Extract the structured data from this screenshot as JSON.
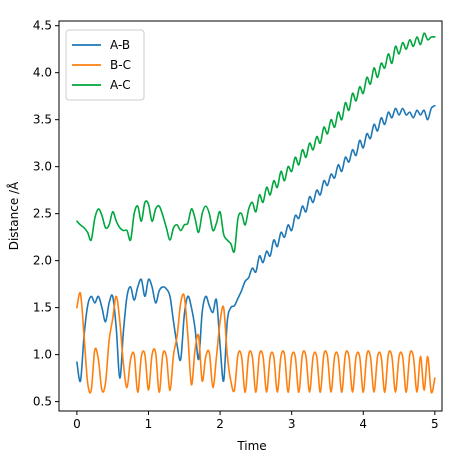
{
  "chart_data": {
    "type": "line",
    "xlabel": "Time",
    "ylabel": "Distance /Å",
    "xlim": [
      -0.25,
      5.1
    ],
    "ylim": [
      0.4,
      4.55
    ],
    "xticks": [
      0,
      1,
      2,
      3,
      4,
      5
    ],
    "xtick_labels": [
      "0",
      "1",
      "2",
      "3",
      "4",
      "5"
    ],
    "yticks": [
      0.5,
      1.0,
      1.5,
      2.0,
      2.5,
      3.0,
      3.5,
      4.0,
      4.5
    ],
    "ytick_labels": [
      "0.5",
      "1.0",
      "1.5",
      "2.0",
      "2.5",
      "3.0",
      "3.5",
      "4.0",
      "4.5"
    ],
    "grid": false,
    "legend_position": "top-left",
    "series": [
      {
        "name": "A-B",
        "color": "#1f77b4",
        "x": [
          0.0,
          0.05,
          0.1,
          0.15,
          0.2,
          0.25,
          0.3,
          0.35,
          0.4,
          0.45,
          0.5,
          0.55,
          0.6,
          0.65,
          0.7,
          0.75,
          0.8,
          0.85,
          0.9,
          0.95,
          1.0,
          1.05,
          1.1,
          1.15,
          1.2,
          1.25,
          1.3,
          1.35,
          1.4,
          1.45,
          1.5,
          1.55,
          1.6,
          1.65,
          1.7,
          1.75,
          1.8,
          1.85,
          1.9,
          1.95,
          2.0,
          2.05,
          2.1,
          2.15,
          2.2,
          2.25,
          2.3,
          2.35,
          2.4,
          2.45,
          2.5,
          2.55,
          2.6,
          2.65,
          2.7,
          2.75,
          2.8,
          2.85,
          2.9,
          2.95,
          3.0,
          3.05,
          3.1,
          3.15,
          3.2,
          3.25,
          3.3,
          3.35,
          3.4,
          3.45,
          3.5,
          3.55,
          3.6,
          3.65,
          3.7,
          3.75,
          3.8,
          3.85,
          3.9,
          3.95,
          4.0,
          4.05,
          4.1,
          4.15,
          4.2,
          4.25,
          4.3,
          4.35,
          4.4,
          4.45,
          4.5,
          4.55,
          4.6,
          4.65,
          4.7,
          4.75,
          4.8,
          4.85,
          4.9,
          4.95,
          5.0
        ],
        "y": [
          0.92,
          0.72,
          1.2,
          1.52,
          1.62,
          1.55,
          1.62,
          1.5,
          1.35,
          1.55,
          1.62,
          1.28,
          0.75,
          1.25,
          1.62,
          1.72,
          1.58,
          1.72,
          1.8,
          1.62,
          1.8,
          1.72,
          1.55,
          1.68,
          1.72,
          1.7,
          1.62,
          1.35,
          1.1,
          0.95,
          1.42,
          1.62,
          1.5,
          1.28,
          0.95,
          1.45,
          1.62,
          1.52,
          1.45,
          1.58,
          1.1,
          0.72,
          1.35,
          1.5,
          1.52,
          1.6,
          1.68,
          1.78,
          1.82,
          1.92,
          1.88,
          2.05,
          1.98,
          2.1,
          2.05,
          2.22,
          2.15,
          2.3,
          2.25,
          2.38,
          2.32,
          2.48,
          2.45,
          2.58,
          2.52,
          2.68,
          2.62,
          2.75,
          2.7,
          2.85,
          2.8,
          2.92,
          2.88,
          3.02,
          2.95,
          3.1,
          3.05,
          3.18,
          3.12,
          3.28,
          3.2,
          3.35,
          3.3,
          3.45,
          3.38,
          3.52,
          3.45,
          3.58,
          3.52,
          3.62,
          3.55,
          3.62,
          3.55,
          3.58,
          3.52,
          3.6,
          3.55,
          3.6,
          3.5,
          3.62,
          3.65
        ]
      },
      {
        "name": "B-C",
        "color": "#ff7f0e",
        "x": [
          0.0,
          0.05,
          0.1,
          0.15,
          0.2,
          0.25,
          0.3,
          0.35,
          0.4,
          0.45,
          0.5,
          0.55,
          0.6,
          0.65,
          0.7,
          0.75,
          0.8,
          0.85,
          0.9,
          0.95,
          1.0,
          1.05,
          1.1,
          1.15,
          1.2,
          1.25,
          1.3,
          1.35,
          1.4,
          1.45,
          1.5,
          1.55,
          1.6,
          1.65,
          1.7,
          1.75,
          1.8,
          1.85,
          1.9,
          1.95,
          2.0,
          2.05,
          2.1,
          2.15,
          2.2,
          2.25,
          2.3,
          2.35,
          2.4,
          2.45,
          2.5,
          2.55,
          2.6,
          2.65,
          2.7,
          2.75,
          2.8,
          2.85,
          2.9,
          2.95,
          3.0,
          3.05,
          3.1,
          3.15,
          3.2,
          3.25,
          3.3,
          3.35,
          3.4,
          3.45,
          3.5,
          3.55,
          3.6,
          3.65,
          3.7,
          3.75,
          3.8,
          3.85,
          3.9,
          3.95,
          4.0,
          4.05,
          4.1,
          4.15,
          4.2,
          4.25,
          4.3,
          4.35,
          4.4,
          4.45,
          4.5,
          4.55,
          4.6,
          4.65,
          4.7,
          4.75,
          4.8,
          4.85,
          4.9,
          4.95,
          5.0
        ],
        "y": [
          1.5,
          1.65,
          1.2,
          0.7,
          0.62,
          1.05,
          0.95,
          0.62,
          0.7,
          1.15,
          1.38,
          1.62,
          1.35,
          0.9,
          0.65,
          0.95,
          1.0,
          0.6,
          0.98,
          1.0,
          0.62,
          1.0,
          1.02,
          0.6,
          1.0,
          0.98,
          0.62,
          1.0,
          1.2,
          1.55,
          1.62,
          1.2,
          0.68,
          1.05,
          1.2,
          0.72,
          0.98,
          1.02,
          0.65,
          0.98,
          1.35,
          1.5,
          1.0,
          0.72,
          0.62,
          1.0,
          0.98,
          0.6,
          1.0,
          0.98,
          0.6,
          1.0,
          0.98,
          0.6,
          0.98,
          0.98,
          0.6,
          0.98,
          1.0,
          0.6,
          0.98,
          0.98,
          0.6,
          1.0,
          0.98,
          0.6,
          0.98,
          0.98,
          0.6,
          1.0,
          0.98,
          0.6,
          0.98,
          0.98,
          0.6,
          1.0,
          0.98,
          0.6,
          0.98,
          0.98,
          0.6,
          1.0,
          0.98,
          0.6,
          0.98,
          0.98,
          0.6,
          1.0,
          0.98,
          0.6,
          0.98,
          0.98,
          0.6,
          1.0,
          0.98,
          0.6,
          0.98,
          0.62,
          0.98,
          0.6,
          0.75
        ]
      },
      {
        "name": "A-C",
        "color": "#00a63e",
        "x": [
          0.0,
          0.05,
          0.1,
          0.15,
          0.2,
          0.25,
          0.3,
          0.35,
          0.4,
          0.45,
          0.5,
          0.55,
          0.6,
          0.65,
          0.7,
          0.75,
          0.8,
          0.85,
          0.9,
          0.95,
          1.0,
          1.05,
          1.1,
          1.15,
          1.2,
          1.25,
          1.3,
          1.35,
          1.4,
          1.45,
          1.5,
          1.55,
          1.6,
          1.65,
          1.7,
          1.75,
          1.8,
          1.85,
          1.9,
          1.95,
          2.0,
          2.05,
          2.1,
          2.15,
          2.2,
          2.25,
          2.3,
          2.35,
          2.4,
          2.45,
          2.5,
          2.55,
          2.6,
          2.65,
          2.7,
          2.75,
          2.8,
          2.85,
          2.9,
          2.95,
          3.0,
          3.05,
          3.1,
          3.15,
          3.2,
          3.25,
          3.3,
          3.35,
          3.4,
          3.45,
          3.5,
          3.55,
          3.6,
          3.65,
          3.7,
          3.75,
          3.8,
          3.85,
          3.9,
          3.95,
          4.0,
          4.05,
          4.1,
          4.15,
          4.2,
          4.25,
          4.3,
          4.35,
          4.4,
          4.45,
          4.5,
          4.55,
          4.6,
          4.65,
          4.7,
          4.75,
          4.8,
          4.85,
          4.9,
          4.95,
          5.0
        ],
        "y": [
          2.42,
          2.38,
          2.35,
          2.3,
          2.22,
          2.45,
          2.55,
          2.48,
          2.35,
          2.38,
          2.52,
          2.42,
          2.35,
          2.32,
          2.32,
          2.22,
          2.5,
          2.58,
          2.42,
          2.62,
          2.6,
          2.42,
          2.55,
          2.58,
          2.48,
          2.35,
          2.22,
          2.35,
          2.38,
          2.32,
          2.38,
          2.4,
          2.55,
          2.45,
          2.3,
          2.5,
          2.58,
          2.5,
          2.32,
          2.4,
          2.52,
          2.28,
          2.22,
          2.18,
          2.1,
          2.45,
          2.5,
          2.38,
          2.55,
          2.62,
          2.52,
          2.7,
          2.62,
          2.78,
          2.7,
          2.85,
          2.78,
          2.95,
          2.85,
          3.0,
          2.95,
          3.1,
          3.02,
          3.18,
          3.1,
          3.25,
          3.18,
          3.32,
          3.25,
          3.42,
          3.35,
          3.5,
          3.42,
          3.58,
          3.5,
          3.68,
          3.6,
          3.78,
          3.7,
          3.85,
          3.78,
          3.95,
          3.88,
          4.05,
          3.95,
          4.1,
          4.05,
          4.2,
          4.1,
          4.28,
          4.2,
          4.32,
          4.25,
          4.35,
          4.28,
          4.38,
          4.3,
          4.42,
          4.35,
          4.38,
          4.38
        ]
      }
    ]
  }
}
